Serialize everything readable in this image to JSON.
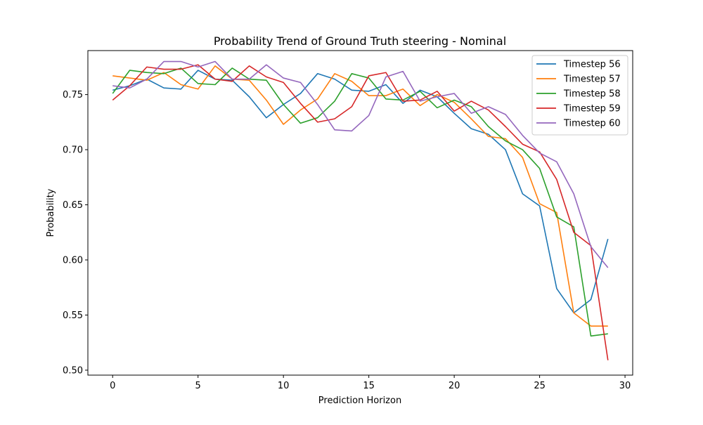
{
  "chart_data": {
    "type": "line",
    "title": "Probability Trend of Ground Truth steering - Nominal",
    "xlabel": "Prediction Horizon",
    "ylabel": "Probability",
    "xlim": [
      -1.45,
      30.45
    ],
    "ylim": [
      0.4955,
      0.7899
    ],
    "xticks": [
      0,
      5,
      10,
      15,
      20,
      25,
      30
    ],
    "yticks": [
      0.5,
      0.55,
      0.6,
      0.65,
      0.7,
      0.75
    ],
    "xtick_labels": [
      "0",
      "5",
      "10",
      "15",
      "20",
      "25",
      "30"
    ],
    "ytick_labels": [
      "0.50",
      "0.55",
      "0.60",
      "0.65",
      "0.70",
      "0.75"
    ],
    "grid": false,
    "legend_position": "top-right",
    "x": [
      0,
      1,
      2,
      3,
      4,
      5,
      6,
      7,
      8,
      9,
      10,
      11,
      12,
      13,
      14,
      15,
      16,
      17,
      18,
      19,
      20,
      21,
      22,
      23,
      24,
      25,
      26,
      27,
      28,
      29
    ],
    "series": [
      {
        "name": "Timestep 56",
        "color": "#1f77b4",
        "values": [
          0.754,
          0.758,
          0.764,
          0.756,
          0.755,
          0.772,
          0.764,
          0.763,
          0.748,
          0.729,
          0.741,
          0.751,
          0.769,
          0.764,
          0.754,
          0.753,
          0.759,
          0.742,
          0.754,
          0.748,
          0.733,
          0.719,
          0.714,
          0.7,
          0.66,
          0.649,
          0.574,
          0.552,
          0.564,
          0.619
        ]
      },
      {
        "name": "Timestep 57",
        "color": "#ff7f0e",
        "values": [
          0.767,
          0.765,
          0.763,
          0.77,
          0.759,
          0.755,
          0.776,
          0.764,
          0.763,
          0.745,
          0.723,
          0.736,
          0.746,
          0.769,
          0.762,
          0.749,
          0.749,
          0.755,
          0.74,
          0.75,
          0.743,
          0.728,
          0.712,
          0.71,
          0.693,
          0.651,
          0.643,
          0.552,
          0.54,
          0.54
        ]
      },
      {
        "name": "Timestep 58",
        "color": "#2ca02c",
        "values": [
          0.751,
          0.772,
          0.77,
          0.769,
          0.774,
          0.76,
          0.759,
          0.774,
          0.764,
          0.763,
          0.741,
          0.724,
          0.729,
          0.744,
          0.769,
          0.765,
          0.746,
          0.745,
          0.753,
          0.738,
          0.745,
          0.739,
          0.721,
          0.708,
          0.7,
          0.683,
          0.639,
          0.63,
          0.531,
          0.533
        ]
      },
      {
        "name": "Timestep 59",
        "color": "#d62728",
        "values": [
          0.745,
          0.758,
          0.775,
          0.773,
          0.773,
          0.777,
          0.764,
          0.762,
          0.776,
          0.766,
          0.761,
          0.742,
          0.725,
          0.728,
          0.739,
          0.767,
          0.77,
          0.744,
          0.745,
          0.753,
          0.735,
          0.744,
          0.736,
          0.721,
          0.705,
          0.698,
          0.673,
          0.625,
          0.613,
          0.509
        ]
      },
      {
        "name": "Timestep 60",
        "color": "#9467bd",
        "values": [
          0.758,
          0.756,
          0.764,
          0.78,
          0.78,
          0.775,
          0.78,
          0.764,
          0.764,
          0.777,
          0.765,
          0.761,
          0.741,
          0.718,
          0.717,
          0.731,
          0.766,
          0.771,
          0.744,
          0.748,
          0.751,
          0.733,
          0.739,
          0.732,
          0.713,
          0.697,
          0.689,
          0.66,
          0.612,
          0.593
        ]
      }
    ]
  }
}
